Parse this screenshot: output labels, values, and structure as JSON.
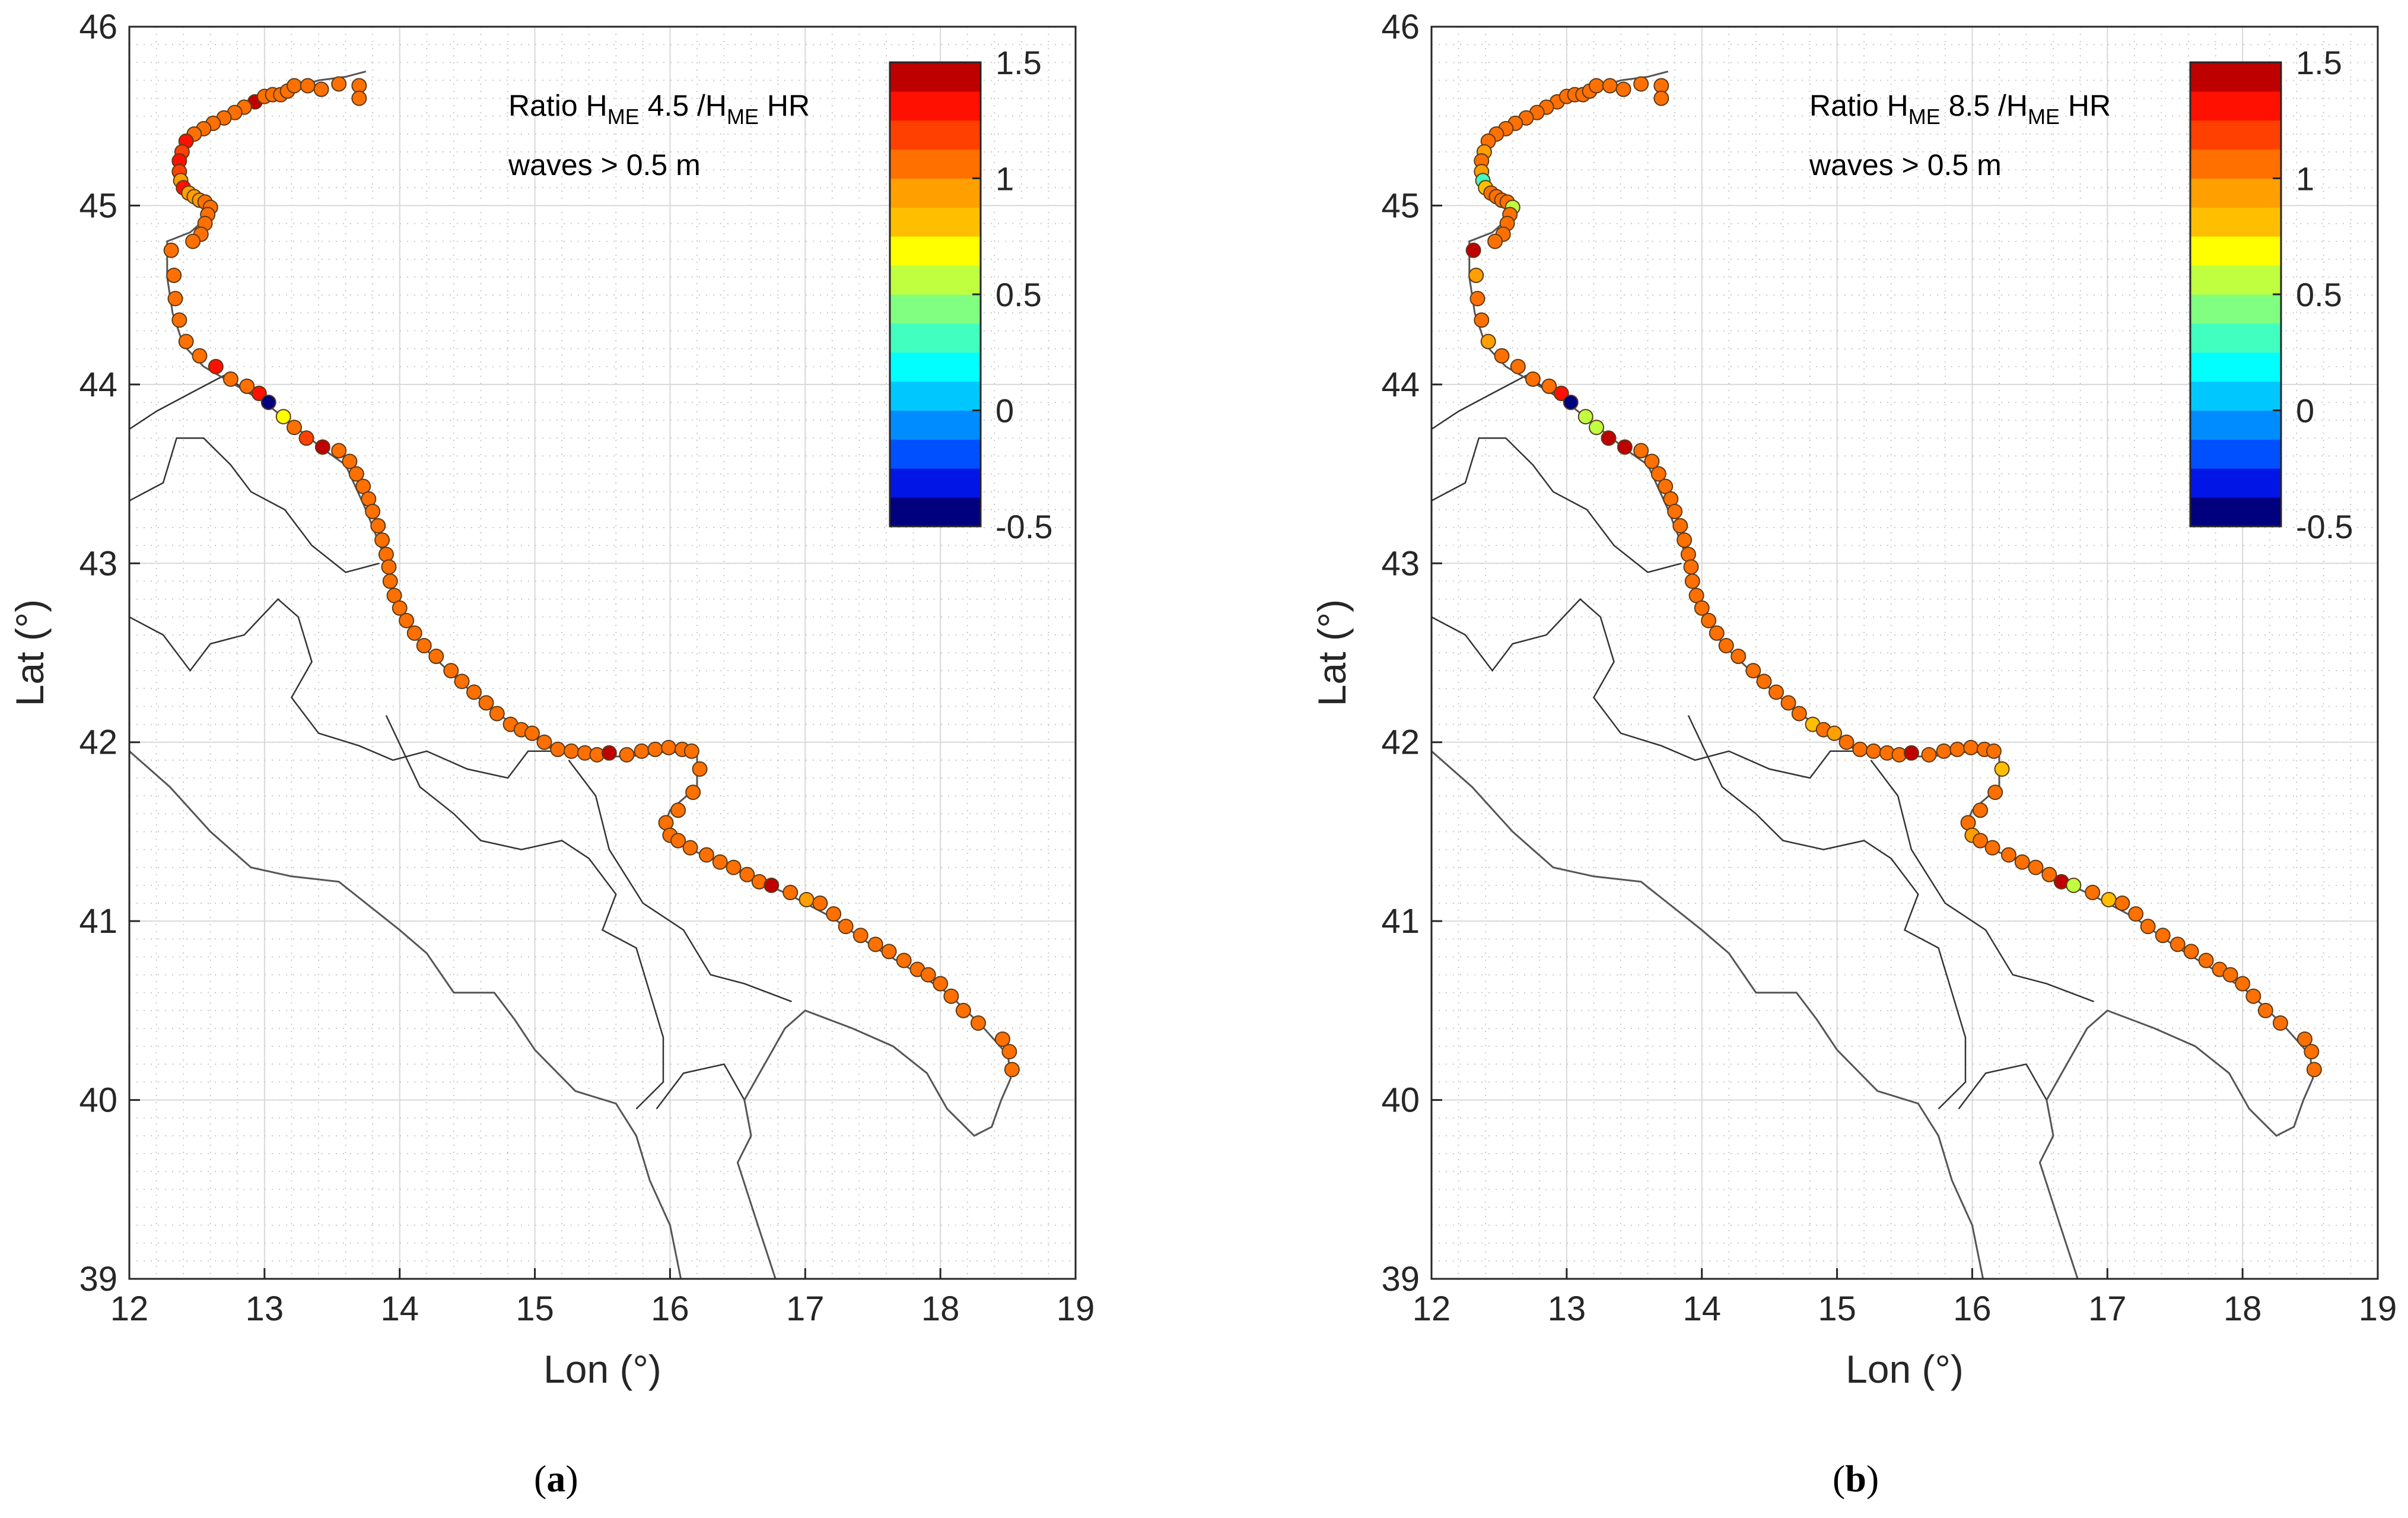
{
  "chart_data": [
    {
      "type": "scatter",
      "panel_label": "a",
      "title_prefix": "Ratio H",
      "title_sub1": "ME",
      "title_mid": " 4.5 /H",
      "title_sub2": "ME",
      "title_suffix": " HR",
      "annotation": "waves > 0.5 m",
      "xlabel": "Lon (°)",
      "ylabel": "Lat (°)",
      "xlim": [
        12,
        19
      ],
      "ylim": [
        39,
        46
      ],
      "xticks": [
        "12",
        "13",
        "14",
        "15",
        "16",
        "17",
        "18",
        "19"
      ],
      "yticks": [
        "39",
        "40",
        "41",
        "42",
        "43",
        "44",
        "45",
        "46"
      ],
      "grid": true,
      "colorbar": {
        "min": -0.5,
        "max": 1.5,
        "ticks": [
          "-0.5",
          "0",
          "0.5",
          "1",
          "1.5"
        ],
        "colors": [
          "#00007f",
          "#0015e6",
          "#0050ff",
          "#008cff",
          "#00c8ff",
          "#00ffff",
          "#40ffbf",
          "#80ff80",
          "#bfff40",
          "#ffff00",
          "#ffbf00",
          "#ff9f00",
          "#ff7000",
          "#ff4000",
          "#ff1000",
          "#bf0000"
        ]
      },
      "points": [
        [
          12.93,
          45.58,
          1.4
        ],
        [
          12.85,
          45.55,
          1.1
        ],
        [
          12.78,
          45.52,
          1.1
        ],
        [
          12.7,
          45.49,
          1.05
        ],
        [
          12.62,
          45.46,
          1.05
        ],
        [
          12.55,
          45.43,
          1.05
        ],
        [
          12.48,
          45.4,
          1.1
        ],
        [
          12.42,
          45.36,
          1.3
        ],
        [
          12.39,
          45.3,
          1.2
        ],
        [
          12.37,
          45.25,
          1.3
        ],
        [
          12.37,
          45.19,
          1.2
        ],
        [
          12.38,
          45.14,
          0.9
        ],
        [
          12.4,
          45.1,
          1.3
        ],
        [
          12.44,
          45.07,
          0.95
        ],
        [
          12.48,
          45.05,
          0.95
        ],
        [
          12.52,
          45.03,
          0.9
        ],
        [
          12.56,
          45.02,
          1.0
        ],
        [
          12.6,
          44.99,
          1.0
        ],
        [
          12.58,
          44.95,
          1.0
        ],
        [
          12.56,
          44.9,
          1.0
        ],
        [
          12.53,
          44.84,
          1.0
        ],
        [
          12.47,
          44.8,
          1.0
        ],
        [
          12.31,
          44.75,
          1.0
        ],
        [
          12.33,
          44.61,
          1.0
        ],
        [
          12.34,
          44.48,
          1.0
        ],
        [
          12.37,
          44.36,
          1.0
        ],
        [
          12.42,
          44.24,
          1.05
        ],
        [
          12.52,
          44.16,
          1.05
        ],
        [
          12.64,
          44.1,
          1.35
        ],
        [
          12.75,
          44.03,
          1.1
        ],
        [
          12.87,
          43.99,
          1.05
        ],
        [
          12.96,
          43.95,
          1.35
        ],
        [
          13.03,
          43.9,
          -0.4
        ],
        [
          13.14,
          43.82,
          0.7
        ],
        [
          13.22,
          43.76,
          1.0
        ],
        [
          13.31,
          43.7,
          1.2
        ],
        [
          13.43,
          43.65,
          1.45
        ],
        [
          13.55,
          43.63,
          1.0
        ],
        [
          13.63,
          43.57,
          1.0
        ],
        [
          13.68,
          43.5,
          1.0
        ],
        [
          13.73,
          43.43,
          1.0
        ],
        [
          13.77,
          43.36,
          1.0
        ],
        [
          13.8,
          43.29,
          1.0
        ],
        [
          13.84,
          43.21,
          1.0
        ],
        [
          13.87,
          43.13,
          1.0
        ],
        [
          13.9,
          43.05,
          1.0
        ],
        [
          13.92,
          42.98,
          1.0
        ],
        [
          13.93,
          42.9,
          1.0
        ],
        [
          13.96,
          42.82,
          1.0
        ],
        [
          14.0,
          42.75,
          1.0
        ],
        [
          14.05,
          42.68,
          1.0
        ],
        [
          14.11,
          42.61,
          1.0
        ],
        [
          14.18,
          42.54,
          1.0
        ],
        [
          14.27,
          42.48,
          1.0
        ],
        [
          14.38,
          42.4,
          1.05
        ],
        [
          14.46,
          42.34,
          1.05
        ],
        [
          14.55,
          42.28,
          1.05
        ],
        [
          14.64,
          42.22,
          1.05
        ],
        [
          14.72,
          42.16,
          1.05
        ],
        [
          14.82,
          42.1,
          1.05
        ],
        [
          14.9,
          42.07,
          1.0
        ],
        [
          14.98,
          42.05,
          1.0
        ],
        [
          15.07,
          42.0,
          1.0
        ],
        [
          15.17,
          41.96,
          1.0
        ],
        [
          15.27,
          41.95,
          1.05
        ],
        [
          15.37,
          41.94,
          1.05
        ],
        [
          15.46,
          41.93,
          1.05
        ],
        [
          15.55,
          41.94,
          1.45
        ],
        [
          15.68,
          41.93,
          1.05
        ],
        [
          15.79,
          41.95,
          1.05
        ],
        [
          15.89,
          41.96,
          1.05
        ],
        [
          15.99,
          41.97,
          1.05
        ],
        [
          16.09,
          41.96,
          1.05
        ],
        [
          16.16,
          41.95,
          1.05
        ],
        [
          16.22,
          41.85,
          1.0
        ],
        [
          16.17,
          41.72,
          1.0
        ],
        [
          16.06,
          41.62,
          1.0
        ],
        [
          15.97,
          41.55,
          1.0
        ],
        [
          16.0,
          41.48,
          1.0
        ],
        [
          16.06,
          41.45,
          1.0
        ],
        [
          16.15,
          41.41,
          1.0
        ],
        [
          16.27,
          41.37,
          1.05
        ],
        [
          16.37,
          41.33,
          1.05
        ],
        [
          16.47,
          41.3,
          1.05
        ],
        [
          16.57,
          41.26,
          1.05
        ],
        [
          16.66,
          41.22,
          1.05
        ],
        [
          16.75,
          41.2,
          1.45
        ],
        [
          16.89,
          41.16,
          1.0
        ],
        [
          17.01,
          41.12,
          0.9
        ],
        [
          17.11,
          41.1,
          1.0
        ],
        [
          17.21,
          41.04,
          1.0
        ],
        [
          17.3,
          40.97,
          1.0
        ],
        [
          17.41,
          40.92,
          1.05
        ],
        [
          17.52,
          40.87,
          1.05
        ],
        [
          17.62,
          40.83,
          1.05
        ],
        [
          17.73,
          40.78,
          1.05
        ],
        [
          17.83,
          40.73,
          1.05
        ],
        [
          17.91,
          40.7,
          1.05
        ],
        [
          18.0,
          40.65,
          1.05
        ],
        [
          18.08,
          40.58,
          1.0
        ],
        [
          18.17,
          40.5,
          1.05
        ],
        [
          18.28,
          40.43,
          1.05
        ],
        [
          18.46,
          40.34,
          1.05
        ],
        [
          18.51,
          40.27,
          1.05
        ],
        [
          18.53,
          40.17,
          1.05
        ],
        [
          13.0,
          45.61,
          1.0
        ],
        [
          13.06,
          45.62,
          1.0
        ],
        [
          13.12,
          45.62,
          1.0
        ],
        [
          13.17,
          45.64,
          1.0
        ],
        [
          13.22,
          45.67,
          1.0
        ],
        [
          13.32,
          45.67,
          1.0
        ],
        [
          13.42,
          45.65,
          1.0
        ],
        [
          13.55,
          45.68,
          1.05
        ],
        [
          13.7,
          45.67,
          1.05
        ],
        [
          13.7,
          45.6,
          1.05
        ]
      ]
    },
    {
      "type": "scatter",
      "panel_label": "b",
      "title_prefix": "Ratio H",
      "title_sub1": "ME",
      "title_mid": " 8.5 /H",
      "title_sub2": "ME",
      "title_suffix": " HR",
      "annotation": "waves > 0.5 m",
      "xlabel": "Lon (°)",
      "ylabel": "Lat (°)",
      "xlim": [
        12,
        19
      ],
      "ylim": [
        39,
        46
      ],
      "xticks": [
        "12",
        "13",
        "14",
        "15",
        "16",
        "17",
        "18",
        "19"
      ],
      "yticks": [
        "39",
        "40",
        "41",
        "42",
        "43",
        "44",
        "45",
        "46"
      ],
      "grid": true,
      "colorbar": {
        "min": -0.5,
        "max": 1.5,
        "ticks": [
          "-0.5",
          "0",
          "0.5",
          "1",
          "1.5"
        ],
        "colors": [
          "#00007f",
          "#0015e6",
          "#0050ff",
          "#008cff",
          "#00c8ff",
          "#00ffff",
          "#40ffbf",
          "#80ff80",
          "#bfff40",
          "#ffff00",
          "#ffbf00",
          "#ff9f00",
          "#ff7000",
          "#ff4000",
          "#ff1000",
          "#bf0000"
        ]
      },
      "points": [
        [
          12.93,
          45.58,
          1.1
        ],
        [
          12.85,
          45.55,
          1.1
        ],
        [
          12.78,
          45.52,
          1.05
        ],
        [
          12.7,
          45.49,
          1.05
        ],
        [
          12.62,
          45.46,
          1.05
        ],
        [
          12.55,
          45.43,
          1.05
        ],
        [
          12.48,
          45.4,
          1.0
        ],
        [
          12.42,
          45.36,
          1.0
        ],
        [
          12.39,
          45.3,
          0.95
        ],
        [
          12.37,
          45.25,
          1.0
        ],
        [
          12.37,
          45.19,
          0.95
        ],
        [
          12.38,
          45.14,
          0.3
        ],
        [
          12.4,
          45.1,
          0.8
        ],
        [
          12.44,
          45.07,
          1.0
        ],
        [
          12.48,
          45.05,
          1.0
        ],
        [
          12.52,
          45.03,
          1.0
        ],
        [
          12.56,
          45.02,
          1.0
        ],
        [
          12.6,
          44.99,
          0.6
        ],
        [
          12.58,
          44.95,
          1.0
        ],
        [
          12.56,
          44.9,
          1.0
        ],
        [
          12.53,
          44.84,
          1.0
        ],
        [
          12.47,
          44.8,
          1.0
        ],
        [
          12.31,
          44.75,
          1.4
        ],
        [
          12.33,
          44.61,
          0.95
        ],
        [
          12.34,
          44.48,
          1.0
        ],
        [
          12.37,
          44.36,
          1.0
        ],
        [
          12.42,
          44.24,
          0.9
        ],
        [
          12.52,
          44.16,
          1.05
        ],
        [
          12.64,
          44.1,
          1.1
        ],
        [
          12.75,
          44.03,
          1.05
        ],
        [
          12.87,
          43.99,
          1.05
        ],
        [
          12.96,
          43.95,
          1.35
        ],
        [
          13.03,
          43.9,
          -0.4
        ],
        [
          13.14,
          43.82,
          0.6
        ],
        [
          13.22,
          43.76,
          0.55
        ],
        [
          13.31,
          43.7,
          1.45
        ],
        [
          13.43,
          43.65,
          1.45
        ],
        [
          13.55,
          43.63,
          1.0
        ],
        [
          13.63,
          43.57,
          1.0
        ],
        [
          13.68,
          43.5,
          1.0
        ],
        [
          13.73,
          43.43,
          1.0
        ],
        [
          13.77,
          43.36,
          1.0
        ],
        [
          13.8,
          43.29,
          1.0
        ],
        [
          13.84,
          43.21,
          1.05
        ],
        [
          13.87,
          43.13,
          1.05
        ],
        [
          13.9,
          43.05,
          1.05
        ],
        [
          13.92,
          42.98,
          1.0
        ],
        [
          13.93,
          42.9,
          1.0
        ],
        [
          13.96,
          42.82,
          1.0
        ],
        [
          14.0,
          42.75,
          1.0
        ],
        [
          14.05,
          42.68,
          1.0
        ],
        [
          14.11,
          42.61,
          1.0
        ],
        [
          14.18,
          42.54,
          1.0
        ],
        [
          14.27,
          42.48,
          1.0
        ],
        [
          14.38,
          42.4,
          1.0
        ],
        [
          14.46,
          42.34,
          1.0
        ],
        [
          14.55,
          42.28,
          1.0
        ],
        [
          14.64,
          42.22,
          1.0
        ],
        [
          14.72,
          42.16,
          1.0
        ],
        [
          14.82,
          42.1,
          0.85
        ],
        [
          14.9,
          42.07,
          1.0
        ],
        [
          14.98,
          42.05,
          0.9
        ],
        [
          15.07,
          42.0,
          1.05
        ],
        [
          15.17,
          41.96,
          1.05
        ],
        [
          15.27,
          41.95,
          1.05
        ],
        [
          15.37,
          41.94,
          1.05
        ],
        [
          15.46,
          41.93,
          1.05
        ],
        [
          15.55,
          41.94,
          1.4
        ],
        [
          15.68,
          41.93,
          1.0
        ],
        [
          15.79,
          41.95,
          1.0
        ],
        [
          15.89,
          41.96,
          1.0
        ],
        [
          15.99,
          41.97,
          1.0
        ],
        [
          16.09,
          41.96,
          1.0
        ],
        [
          16.16,
          41.95,
          1.0
        ],
        [
          16.22,
          41.85,
          0.85
        ],
        [
          16.17,
          41.72,
          1.0
        ],
        [
          16.06,
          41.62,
          1.0
        ],
        [
          15.97,
          41.55,
          1.0
        ],
        [
          16.0,
          41.48,
          0.9
        ],
        [
          16.06,
          41.45,
          1.0
        ],
        [
          16.15,
          41.41,
          1.0
        ],
        [
          16.27,
          41.37,
          1.0
        ],
        [
          16.37,
          41.33,
          1.0
        ],
        [
          16.47,
          41.3,
          1.0
        ],
        [
          16.57,
          41.26,
          1.05
        ],
        [
          16.66,
          41.22,
          1.4
        ],
        [
          16.75,
          41.2,
          0.55
        ],
        [
          16.89,
          41.16,
          1.0
        ],
        [
          17.01,
          41.12,
          0.85
        ],
        [
          17.11,
          41.1,
          1.0
        ],
        [
          17.21,
          41.04,
          1.05
        ],
        [
          17.3,
          40.97,
          1.1
        ],
        [
          17.41,
          40.92,
          1.1
        ],
        [
          17.52,
          40.87,
          1.1
        ],
        [
          17.62,
          40.83,
          1.1
        ],
        [
          17.73,
          40.78,
          1.1
        ],
        [
          17.83,
          40.73,
          1.1
        ],
        [
          17.91,
          40.7,
          1.1
        ],
        [
          18.0,
          40.65,
          1.1
        ],
        [
          18.08,
          40.58,
          1.05
        ],
        [
          18.17,
          40.5,
          1.0
        ],
        [
          18.28,
          40.43,
          1.05
        ],
        [
          18.46,
          40.34,
          1.05
        ],
        [
          18.51,
          40.27,
          1.05
        ],
        [
          18.53,
          40.17,
          1.05
        ],
        [
          13.0,
          45.61,
          1.1
        ],
        [
          13.06,
          45.62,
          1.05
        ],
        [
          13.12,
          45.62,
          1.0
        ],
        [
          13.17,
          45.64,
          1.0
        ],
        [
          13.22,
          45.67,
          1.0
        ],
        [
          13.32,
          45.67,
          1.0
        ],
        [
          13.42,
          45.65,
          1.0
        ],
        [
          13.55,
          45.68,
          1.0
        ],
        [
          13.7,
          45.67,
          1.0
        ],
        [
          13.7,
          45.6,
          1.0
        ]
      ]
    }
  ]
}
